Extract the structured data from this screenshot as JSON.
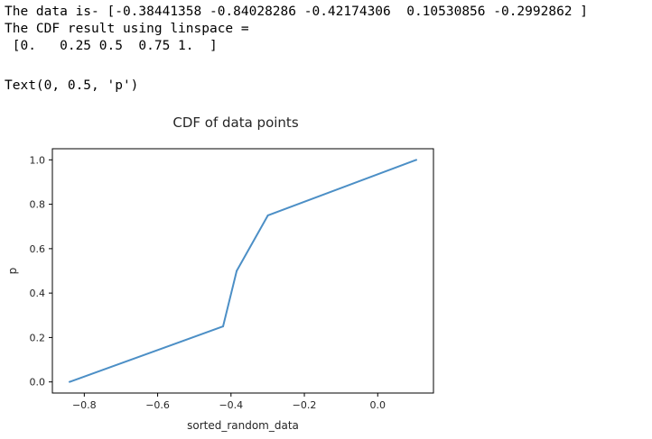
{
  "output": {
    "lines": [
      "The data is- [-0.38441358 -0.84028286 -0.42174306  0.10530856 -0.2992862 ]",
      "The CDF result using linspace =",
      " [0.   0.25 0.5  0.75 1.  ]"
    ],
    "repr": "Text(0, 0.5, 'p')"
  },
  "chart_data": {
    "type": "line",
    "title": "CDF of data points",
    "xlabel": "sorted_random_data",
    "ylabel": "p",
    "series": [
      {
        "x": [
          -0.84028286,
          -0.42174306,
          -0.38441358,
          -0.2992862,
          0.10530856
        ],
        "y": [
          0.0,
          0.25,
          0.5,
          0.75,
          1.0
        ],
        "color": "#4c8fc6"
      }
    ],
    "xlim": [
      -0.887,
      0.152
    ],
    "ylim": [
      -0.05,
      1.05
    ],
    "xticks": [
      -0.8,
      -0.6,
      -0.4,
      -0.2,
      0.0
    ],
    "xtick_labels": [
      "−0.8",
      "−0.6",
      "−0.4",
      "−0.2",
      "0.0"
    ],
    "yticks": [
      0.0,
      0.2,
      0.4,
      0.6,
      0.8,
      1.0
    ],
    "ytick_labels": [
      "0.0",
      "0.2",
      "0.4",
      "0.6",
      "0.8",
      "1.0"
    ],
    "grid": false,
    "legend": "none"
  }
}
